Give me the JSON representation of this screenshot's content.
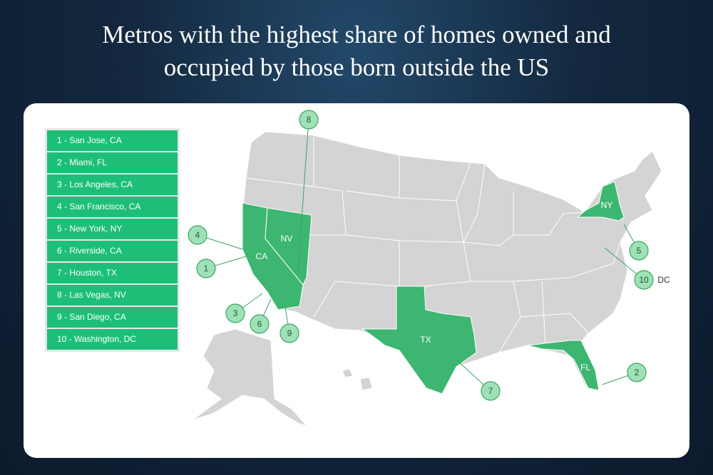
{
  "title": [
    "Metros with the highest share of homes owned and",
    "occupied by those born outside the US"
  ],
  "legend": [
    "1 - San Jose, CA",
    "2 - Miami, FL",
    "3 - Los Angeles, CA",
    "4 - San Francisco, CA",
    "5 - New York, NY",
    "6 - Riverside, CA",
    "7 - Houston, TX",
    "8 - Las Vegas, NV",
    "9 - San Diego, CA",
    "10 - Washington, DC"
  ],
  "state_labels": [
    "CA",
    "NV",
    "TX",
    "FL",
    "NY"
  ],
  "markers": [
    1,
    2,
    3,
    4,
    5,
    6,
    7,
    8,
    9,
    10
  ],
  "dc_label": "DC"
}
